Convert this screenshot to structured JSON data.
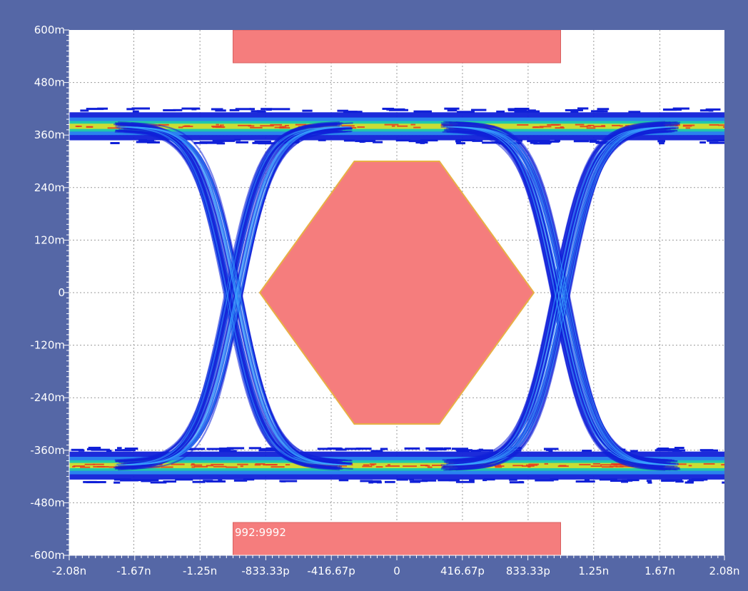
{
  "chart_data": {
    "type": "eye-diagram",
    "title": "",
    "xlabel": "",
    "ylabel": "",
    "xlim": [
      -2.08,
      2.08
    ],
    "ylim": [
      -600,
      600
    ],
    "x_unit": "ns",
    "y_unit": "mV",
    "x_ticks": [
      {
        "value": -2.08,
        "label": "-2.08n"
      },
      {
        "value": -1.67,
        "label": "-1.67n"
      },
      {
        "value": -1.25,
        "label": "-1.25n"
      },
      {
        "value": -0.83333,
        "label": "-833.33p"
      },
      {
        "value": -0.41667,
        "label": "-416.67p"
      },
      {
        "value": 0,
        "label": "0"
      },
      {
        "value": 0.41667,
        "label": "416.67p"
      },
      {
        "value": 0.83333,
        "label": "833.33p"
      },
      {
        "value": 1.25,
        "label": "1.25n"
      },
      {
        "value": 1.67,
        "label": "1.67n"
      },
      {
        "value": 2.08,
        "label": "2.08n"
      }
    ],
    "y_ticks": [
      {
        "value": 600,
        "label": "600m"
      },
      {
        "value": 480,
        "label": "480m"
      },
      {
        "value": 360,
        "label": "360m"
      },
      {
        "value": 240,
        "label": "240m"
      },
      {
        "value": 120,
        "label": "120m"
      },
      {
        "value": 0,
        "label": "0"
      },
      {
        "value": -120,
        "label": "-120m"
      },
      {
        "value": -240,
        "label": "-240m"
      },
      {
        "value": -360,
        "label": "-360m"
      },
      {
        "value": -480,
        "label": "-480m"
      },
      {
        "value": -600,
        "label": "-600m"
      }
    ],
    "grid": true,
    "logic_levels": {
      "high": 380,
      "low": -395
    },
    "crossings": [
      -1.04,
      1.04
    ],
    "masks": {
      "top": {
        "x": [
          -1.04,
          1.04
        ],
        "y": [
          525,
          600
        ]
      },
      "bottom": {
        "x": [
          -1.04,
          1.04
        ],
        "y": [
          -600,
          -525
        ]
      },
      "center_hexagon": [
        {
          "x": -0.87,
          "y": 0
        },
        {
          "x": -0.27,
          "y": 300
        },
        {
          "x": 0.27,
          "y": 300
        },
        {
          "x": 0.87,
          "y": 0
        },
        {
          "x": 0.27,
          "y": -300
        },
        {
          "x": -0.27,
          "y": -300
        }
      ]
    },
    "annotation": "992:9992"
  },
  "colors": {
    "background": "#5567a6",
    "plot_bg": "#ffffff",
    "mask_fill": "#f57d7d",
    "mask_outline": "#e8b045",
    "trace_dense": "#1020d8",
    "trace_hot": "#e83a20",
    "trace_warm": "#e8e020",
    "trace_mid": "#20d0a0"
  }
}
